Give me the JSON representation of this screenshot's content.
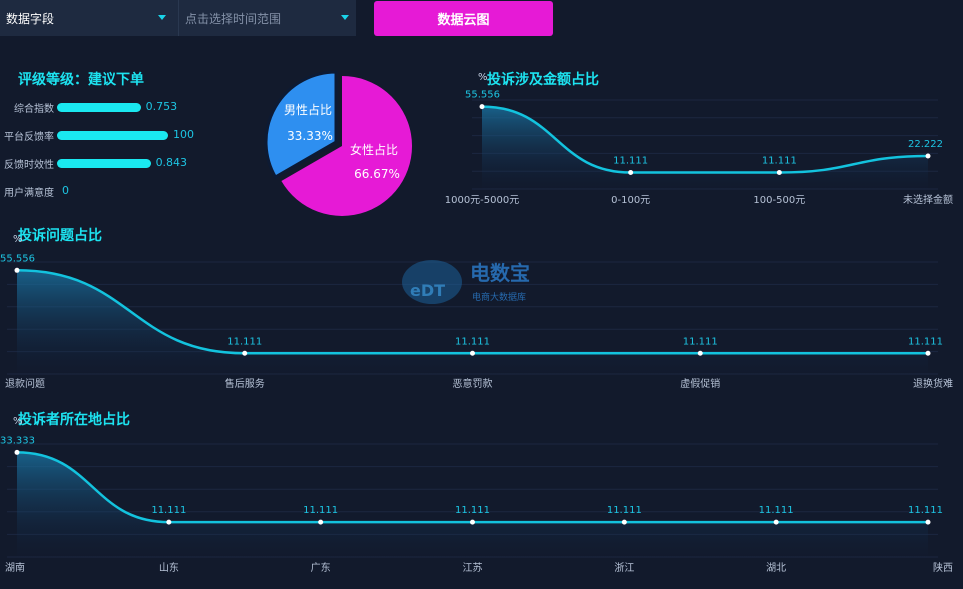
{
  "toolbar": {
    "field_select": "数据字段",
    "time_placeholder": "点击选择时间范围",
    "cloud_button": "数据云图"
  },
  "rating": {
    "title": "评级等级：建议下单",
    "items": [
      {
        "label": "综合指数",
        "value": "0.753",
        "fill": 0.753
      },
      {
        "label": "平台反馈率",
        "value": "100",
        "fill": 1.0
      },
      {
        "label": "反馈时效性",
        "value": "0.843",
        "fill": 0.843
      },
      {
        "label": "用户满意度",
        "value": "0",
        "fill": 0
      }
    ]
  },
  "gender": {
    "male_label": "男性占比",
    "male_value": "33.33%",
    "female_label": "女性占比",
    "female_value": "66.67%",
    "male_color": "#2e8ff0",
    "female_color": "#e61ad6"
  },
  "watermark": {
    "brand": "电数宝",
    "sub": "电商大数据库",
    "logo_text": "eDT"
  },
  "chart_data": [
    {
      "type": "area",
      "title": "投诉涉及金额占比",
      "ylabel": "%",
      "categories": [
        "1000元-5000元",
        "0-100元",
        "100-500元",
        "未选择金额"
      ],
      "values": [
        55.556,
        11.111,
        11.111,
        22.222
      ],
      "labels": [
        "55.556",
        "11.111",
        "11.111",
        "22.222"
      ],
      "ylim": [
        0,
        60
      ],
      "grid": true
    },
    {
      "type": "area",
      "title": "投诉问题占比",
      "ylabel": "%",
      "categories": [
        "退款问题",
        "售后服务",
        "恶意罚款",
        "虚假促销",
        "退换货难"
      ],
      "values": [
        55.556,
        11.111,
        11.111,
        11.111,
        11.111
      ],
      "labels": [
        "55.556",
        "11.111",
        "11.111",
        "11.111",
        "11.111"
      ],
      "ylim": [
        0,
        60
      ],
      "grid": true
    },
    {
      "type": "area",
      "title": "投诉者所在地占比",
      "ylabel": "%",
      "categories": [
        "湖南",
        "山东",
        "广东",
        "江苏",
        "浙江",
        "湖北",
        "陕西"
      ],
      "values": [
        33.333,
        11.111,
        11.111,
        11.111,
        11.111,
        11.111,
        11.111
      ],
      "labels": [
        "33.333",
        "11.111",
        "11.111",
        "11.111",
        "11.111",
        "11.111",
        "11.111"
      ],
      "ylim": [
        0,
        36
      ],
      "grid": true
    }
  ],
  "colors": {
    "accent": "#1de3f0",
    "line": "#13c3de",
    "background": "#121a2c"
  }
}
